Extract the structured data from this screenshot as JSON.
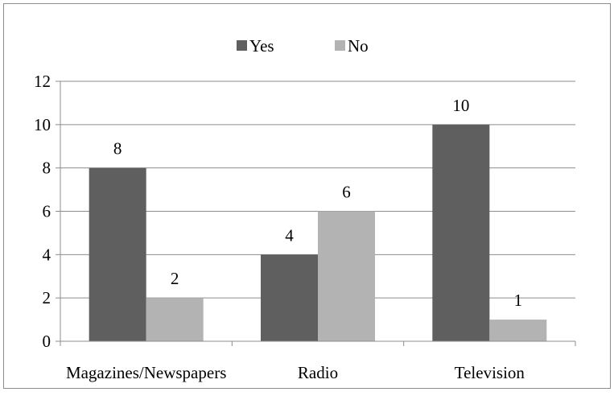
{
  "chart_data": {
    "type": "bar",
    "categories": [
      "Magazines/Newspapers",
      "Radio",
      "Television"
    ],
    "series": [
      {
        "name": "Yes",
        "values": [
          8,
          4,
          10
        ],
        "color": "#5f5f5f"
      },
      {
        "name": "No",
        "values": [
          2,
          6,
          1
        ],
        "color": "#b3b3b3"
      }
    ],
    "ylim": [
      0,
      12
    ],
    "yticks": [
      "0",
      "2",
      "4",
      "6",
      "8",
      "10",
      "12"
    ],
    "ytick_values": [
      0,
      2,
      4,
      6,
      8,
      10,
      12
    ],
    "grid": true,
    "legend_placement": "top-center",
    "data_labels": true,
    "gridline_color": "#8c8c8c",
    "border_color": "#8c8c8c"
  }
}
